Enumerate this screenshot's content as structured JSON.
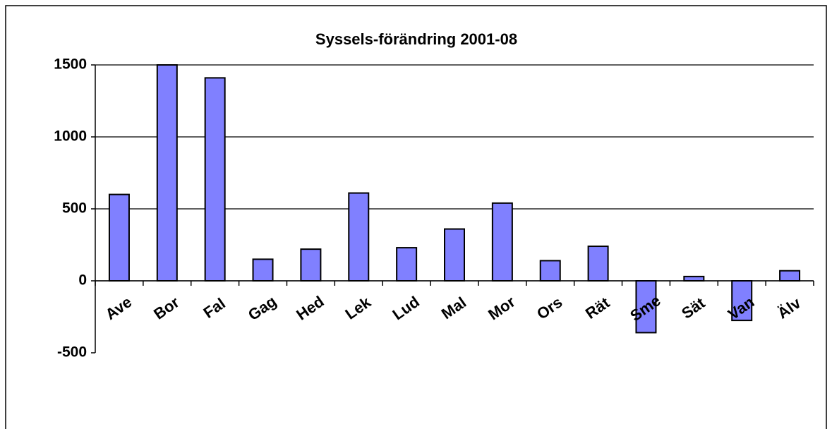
{
  "chart_data": {
    "type": "bar",
    "title": "Syssels-förändring 2001-08",
    "categories": [
      "Ave",
      "Bor",
      "Fal",
      "Gag",
      "Hed",
      "Lek",
      "Lud",
      "Mal",
      "Mor",
      "Ors",
      "Rät",
      "Sme",
      "Sät",
      "Van",
      "Älv"
    ],
    "values": [
      600,
      1500,
      1410,
      150,
      220,
      610,
      230,
      360,
      540,
      140,
      240,
      -360,
      30,
      -275,
      70
    ],
    "color": "#8080ff",
    "ylim": [
      -500,
      1500
    ],
    "yticks": [
      -500,
      0,
      500,
      1000,
      1500
    ],
    "grid": true
  }
}
